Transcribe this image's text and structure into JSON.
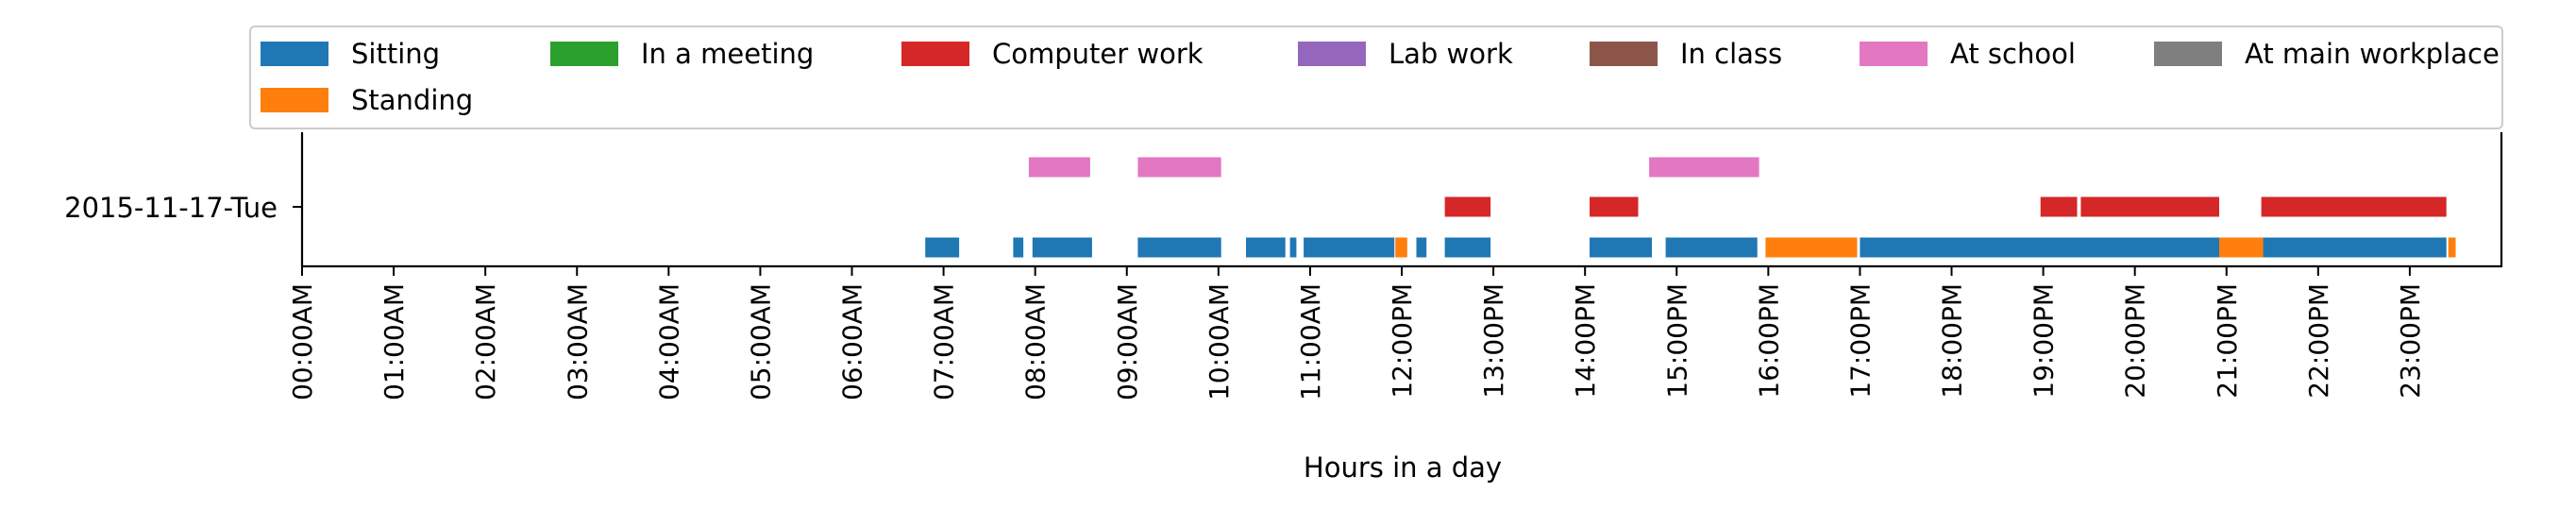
{
  "chart_data": {
    "type": "timeline",
    "category": "2015-11-17-Tue",
    "xlabel": "Hours in a day",
    "xlim": [
      0,
      24
    ],
    "ticks": [
      {
        "hour": 0,
        "label": "00:00AM"
      },
      {
        "hour": 1,
        "label": "01:00AM"
      },
      {
        "hour": 2,
        "label": "02:00AM"
      },
      {
        "hour": 3,
        "label": "03:00AM"
      },
      {
        "hour": 4,
        "label": "04:00AM"
      },
      {
        "hour": 5,
        "label": "05:00AM"
      },
      {
        "hour": 6,
        "label": "06:00AM"
      },
      {
        "hour": 7,
        "label": "07:00AM"
      },
      {
        "hour": 8,
        "label": "08:00AM"
      },
      {
        "hour": 9,
        "label": "09:00AM"
      },
      {
        "hour": 10,
        "label": "10:00AM"
      },
      {
        "hour": 11,
        "label": "11:00AM"
      },
      {
        "hour": 12,
        "label": "12:00PM"
      },
      {
        "hour": 13,
        "label": "13:00PM"
      },
      {
        "hour": 14,
        "label": "14:00PM"
      },
      {
        "hour": 15,
        "label": "15:00PM"
      },
      {
        "hour": 16,
        "label": "16:00PM"
      },
      {
        "hour": 17,
        "label": "17:00PM"
      },
      {
        "hour": 18,
        "label": "18:00PM"
      },
      {
        "hour": 19,
        "label": "19:00PM"
      },
      {
        "hour": 20,
        "label": "20:00PM"
      },
      {
        "hour": 21,
        "label": "21:00PM"
      },
      {
        "hour": 22,
        "label": "22:00PM"
      },
      {
        "hour": 23,
        "label": "23:00PM"
      }
    ],
    "legend_placement": "top",
    "series": [
      {
        "name": "Sitting",
        "color": "#1f77b4",
        "lane": 0,
        "intervals": [
          [
            6.8,
            7.17
          ],
          [
            7.76,
            7.87
          ],
          [
            7.97,
            8.62
          ],
          [
            9.12,
            10.03
          ],
          [
            10.3,
            10.73
          ],
          [
            10.78,
            10.85
          ],
          [
            10.93,
            11.92
          ],
          [
            12.16,
            12.27
          ],
          [
            12.47,
            12.97
          ],
          [
            14.05,
            14.73
          ],
          [
            14.88,
            15.88
          ],
          [
            17.0,
            20.92
          ],
          [
            21.38,
            23.4
          ]
        ]
      },
      {
        "name": "Standing",
        "color": "#ff7f0e",
        "lane": 0,
        "intervals": [
          [
            11.93,
            12.06
          ],
          [
            15.97,
            16.97
          ],
          [
            20.92,
            21.4
          ],
          [
            23.42,
            23.5
          ]
        ]
      },
      {
        "name": "In a meeting",
        "color": "#2ca02c",
        "lane": 2,
        "intervals": []
      },
      {
        "name": "Computer work",
        "color": "#d62728",
        "lane": 1,
        "intervals": [
          [
            12.47,
            12.97
          ],
          [
            14.05,
            14.58
          ],
          [
            18.97,
            19.37
          ],
          [
            19.41,
            20.92
          ],
          [
            21.38,
            23.4
          ]
        ]
      },
      {
        "name": "Lab work",
        "color": "#9467bd",
        "lane": 2,
        "intervals": []
      },
      {
        "name": "In class",
        "color": "#8c564b",
        "lane": 2,
        "intervals": []
      },
      {
        "name": "At school",
        "color": "#e377c2",
        "lane": 2,
        "intervals": [
          [
            7.93,
            8.6
          ],
          [
            9.12,
            10.03
          ],
          [
            14.7,
            15.9
          ]
        ]
      },
      {
        "name": "At main workplace",
        "color": "#7f7f7f",
        "lane": 2,
        "intervals": []
      }
    ]
  }
}
